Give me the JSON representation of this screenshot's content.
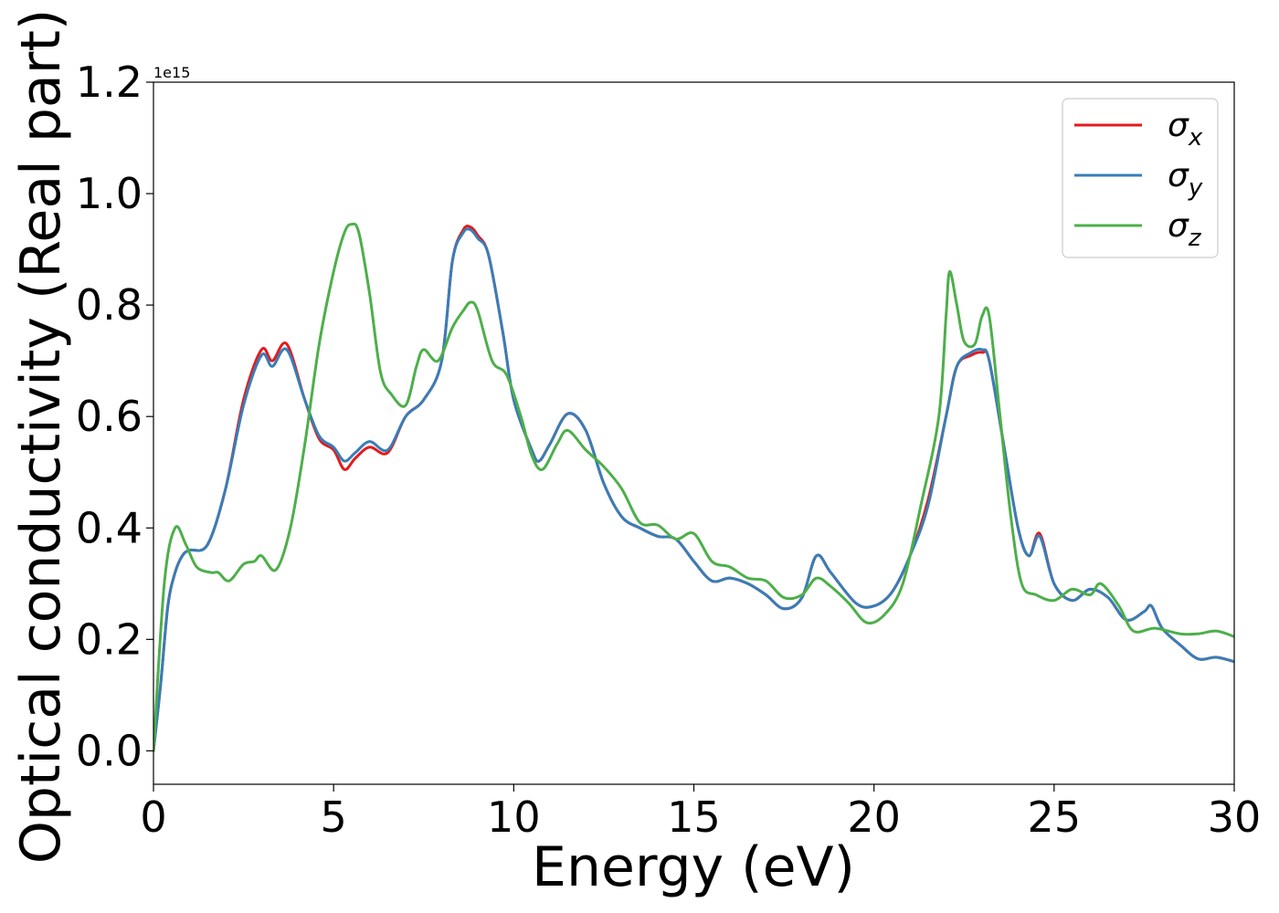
{
  "chart_data": {
    "type": "line",
    "xlabel": "Energy (eV)",
    "ylabel": "Optical conductivity (Real part)",
    "y_offset_text": "1e15",
    "xlim": [
      0,
      30
    ],
    "ylim": [
      -0.06,
      1.2
    ],
    "x_ticks": [
      0,
      5,
      10,
      15,
      20,
      25,
      30
    ],
    "x_tick_labels": [
      "0",
      "5",
      "10",
      "15",
      "20",
      "25",
      "30"
    ],
    "y_ticks": [
      0.0,
      0.2,
      0.4,
      0.6,
      0.8,
      1.0,
      1.2
    ],
    "y_tick_labels": [
      "0.0",
      "0.2",
      "0.4",
      "0.6",
      "0.8",
      "1.0",
      "1.2"
    ],
    "grid": false,
    "legend_position": "top-right",
    "series": [
      {
        "name": "σx",
        "legend_base": "σ",
        "legend_sub": "x",
        "color": "#e41a1c",
        "points": [
          [
            0,
            0.0
          ],
          [
            0.2,
            0.12
          ],
          [
            0.4,
            0.26
          ],
          [
            0.6,
            0.32
          ],
          [
            0.8,
            0.35
          ],
          [
            1.0,
            0.36
          ],
          [
            1.5,
            0.37
          ],
          [
            2.0,
            0.47
          ],
          [
            2.5,
            0.63
          ],
          [
            3.0,
            0.72
          ],
          [
            3.3,
            0.7
          ],
          [
            3.7,
            0.73
          ],
          [
            4.2,
            0.63
          ],
          [
            4.6,
            0.56
          ],
          [
            5.0,
            0.54
          ],
          [
            5.3,
            0.505
          ],
          [
            5.6,
            0.525
          ],
          [
            6.0,
            0.545
          ],
          [
            6.5,
            0.535
          ],
          [
            7.0,
            0.6
          ],
          [
            7.5,
            0.63
          ],
          [
            8.0,
            0.7
          ],
          [
            8.3,
            0.88
          ],
          [
            8.6,
            0.935
          ],
          [
            8.8,
            0.94
          ],
          [
            9.0,
            0.925
          ],
          [
            9.3,
            0.89
          ],
          [
            9.7,
            0.75
          ],
          [
            10.0,
            0.63
          ],
          [
            10.5,
            0.54
          ],
          [
            10.7,
            0.52
          ],
          [
            11.0,
            0.55
          ],
          [
            11.5,
            0.605
          ],
          [
            12.0,
            0.575
          ],
          [
            12.5,
            0.48
          ],
          [
            13.0,
            0.42
          ],
          [
            13.5,
            0.4
          ],
          [
            14.0,
            0.385
          ],
          [
            14.5,
            0.38
          ],
          [
            15.0,
            0.34
          ],
          [
            15.5,
            0.305
          ],
          [
            16.0,
            0.31
          ],
          [
            16.5,
            0.3
          ],
          [
            17.0,
            0.28
          ],
          [
            17.5,
            0.255
          ],
          [
            18.0,
            0.275
          ],
          [
            18.4,
            0.35
          ],
          [
            18.8,
            0.32
          ],
          [
            19.5,
            0.265
          ],
          [
            20.0,
            0.26
          ],
          [
            20.5,
            0.285
          ],
          [
            21.0,
            0.35
          ],
          [
            21.5,
            0.45
          ],
          [
            22.0,
            0.6
          ],
          [
            22.3,
            0.69
          ],
          [
            22.7,
            0.71
          ],
          [
            23.0,
            0.715
          ],
          [
            23.2,
            0.7
          ],
          [
            23.6,
            0.55
          ],
          [
            24.0,
            0.4
          ],
          [
            24.3,
            0.35
          ],
          [
            24.6,
            0.39
          ],
          [
            25.0,
            0.3
          ],
          [
            25.5,
            0.27
          ],
          [
            26.0,
            0.29
          ],
          [
            26.5,
            0.275
          ],
          [
            27.0,
            0.235
          ],
          [
            27.5,
            0.25
          ],
          [
            27.7,
            0.26
          ],
          [
            28.0,
            0.22
          ],
          [
            28.5,
            0.19
          ],
          [
            29.0,
            0.165
          ],
          [
            29.5,
            0.168
          ],
          [
            30.0,
            0.16
          ]
        ]
      },
      {
        "name": "σy",
        "legend_base": "σ",
        "legend_sub": "y",
        "color": "#377eb8",
        "points": [
          [
            0,
            0.0
          ],
          [
            0.2,
            0.12
          ],
          [
            0.4,
            0.26
          ],
          [
            0.6,
            0.32
          ],
          [
            0.8,
            0.35
          ],
          [
            1.0,
            0.36
          ],
          [
            1.5,
            0.37
          ],
          [
            2.0,
            0.47
          ],
          [
            2.5,
            0.62
          ],
          [
            3.0,
            0.71
          ],
          [
            3.3,
            0.69
          ],
          [
            3.7,
            0.72
          ],
          [
            4.2,
            0.63
          ],
          [
            4.6,
            0.565
          ],
          [
            5.0,
            0.545
          ],
          [
            5.3,
            0.52
          ],
          [
            5.6,
            0.535
          ],
          [
            6.0,
            0.555
          ],
          [
            6.5,
            0.54
          ],
          [
            7.0,
            0.6
          ],
          [
            7.5,
            0.63
          ],
          [
            8.0,
            0.7
          ],
          [
            8.3,
            0.88
          ],
          [
            8.6,
            0.93
          ],
          [
            8.8,
            0.935
          ],
          [
            9.0,
            0.92
          ],
          [
            9.3,
            0.89
          ],
          [
            9.7,
            0.75
          ],
          [
            10.0,
            0.63
          ],
          [
            10.5,
            0.54
          ],
          [
            10.7,
            0.52
          ],
          [
            11.0,
            0.55
          ],
          [
            11.5,
            0.605
          ],
          [
            12.0,
            0.575
          ],
          [
            12.5,
            0.48
          ],
          [
            13.0,
            0.42
          ],
          [
            13.5,
            0.4
          ],
          [
            14.0,
            0.385
          ],
          [
            14.5,
            0.38
          ],
          [
            15.0,
            0.34
          ],
          [
            15.5,
            0.305
          ],
          [
            16.0,
            0.31
          ],
          [
            16.5,
            0.3
          ],
          [
            17.0,
            0.28
          ],
          [
            17.5,
            0.255
          ],
          [
            18.0,
            0.275
          ],
          [
            18.4,
            0.35
          ],
          [
            18.8,
            0.32
          ],
          [
            19.5,
            0.265
          ],
          [
            20.0,
            0.26
          ],
          [
            20.5,
            0.285
          ],
          [
            21.0,
            0.35
          ],
          [
            21.5,
            0.44
          ],
          [
            22.0,
            0.6
          ],
          [
            22.3,
            0.69
          ],
          [
            22.7,
            0.715
          ],
          [
            23.0,
            0.72
          ],
          [
            23.2,
            0.7
          ],
          [
            23.6,
            0.55
          ],
          [
            24.0,
            0.4
          ],
          [
            24.3,
            0.35
          ],
          [
            24.6,
            0.385
          ],
          [
            25.0,
            0.3
          ],
          [
            25.5,
            0.27
          ],
          [
            26.0,
            0.29
          ],
          [
            26.5,
            0.275
          ],
          [
            27.0,
            0.235
          ],
          [
            27.5,
            0.25
          ],
          [
            27.7,
            0.26
          ],
          [
            28.0,
            0.22
          ],
          [
            28.5,
            0.19
          ],
          [
            29.0,
            0.165
          ],
          [
            29.5,
            0.168
          ],
          [
            30.0,
            0.16
          ]
        ]
      },
      {
        "name": "σz",
        "legend_base": "σ",
        "legend_sub": "z",
        "color": "#4daf4a",
        "points": [
          [
            0,
            0.0
          ],
          [
            0.3,
            0.3
          ],
          [
            0.6,
            0.4
          ],
          [
            0.9,
            0.37
          ],
          [
            1.2,
            0.33
          ],
          [
            1.6,
            0.32
          ],
          [
            1.8,
            0.32
          ],
          [
            2.1,
            0.305
          ],
          [
            2.5,
            0.335
          ],
          [
            2.8,
            0.34
          ],
          [
            3.0,
            0.35
          ],
          [
            3.4,
            0.325
          ],
          [
            3.8,
            0.4
          ],
          [
            4.2,
            0.55
          ],
          [
            4.6,
            0.73
          ],
          [
            5.0,
            0.86
          ],
          [
            5.3,
            0.93
          ],
          [
            5.5,
            0.945
          ],
          [
            5.7,
            0.93
          ],
          [
            6.0,
            0.82
          ],
          [
            6.3,
            0.68
          ],
          [
            6.6,
            0.64
          ],
          [
            7.0,
            0.62
          ],
          [
            7.3,
            0.69
          ],
          [
            7.5,
            0.72
          ],
          [
            7.9,
            0.7
          ],
          [
            8.3,
            0.76
          ],
          [
            8.6,
            0.79
          ],
          [
            8.8,
            0.805
          ],
          [
            9.0,
            0.79
          ],
          [
            9.4,
            0.7
          ],
          [
            9.8,
            0.675
          ],
          [
            10.2,
            0.6
          ],
          [
            10.5,
            0.53
          ],
          [
            10.8,
            0.505
          ],
          [
            11.2,
            0.55
          ],
          [
            11.5,
            0.575
          ],
          [
            12.0,
            0.54
          ],
          [
            12.5,
            0.51
          ],
          [
            13.0,
            0.47
          ],
          [
            13.5,
            0.41
          ],
          [
            14.0,
            0.405
          ],
          [
            14.5,
            0.38
          ],
          [
            15.0,
            0.39
          ],
          [
            15.5,
            0.34
          ],
          [
            16.0,
            0.33
          ],
          [
            16.5,
            0.31
          ],
          [
            17.0,
            0.305
          ],
          [
            17.5,
            0.275
          ],
          [
            18.0,
            0.28
          ],
          [
            18.4,
            0.31
          ],
          [
            18.8,
            0.295
          ],
          [
            19.3,
            0.265
          ],
          [
            19.8,
            0.23
          ],
          [
            20.3,
            0.245
          ],
          [
            20.8,
            0.3
          ],
          [
            21.3,
            0.44
          ],
          [
            21.8,
            0.6
          ],
          [
            22.0,
            0.78
          ],
          [
            22.1,
            0.86
          ],
          [
            22.3,
            0.8
          ],
          [
            22.5,
            0.735
          ],
          [
            22.8,
            0.73
          ],
          [
            23.0,
            0.78
          ],
          [
            23.2,
            0.78
          ],
          [
            23.5,
            0.6
          ],
          [
            23.8,
            0.42
          ],
          [
            24.1,
            0.3
          ],
          [
            24.5,
            0.28
          ],
          [
            25.0,
            0.27
          ],
          [
            25.5,
            0.29
          ],
          [
            26.0,
            0.28
          ],
          [
            26.3,
            0.3
          ],
          [
            26.8,
            0.26
          ],
          [
            27.2,
            0.215
          ],
          [
            27.8,
            0.22
          ],
          [
            28.5,
            0.21
          ],
          [
            29.0,
            0.21
          ],
          [
            29.5,
            0.215
          ],
          [
            30.0,
            0.205
          ]
        ]
      }
    ]
  }
}
